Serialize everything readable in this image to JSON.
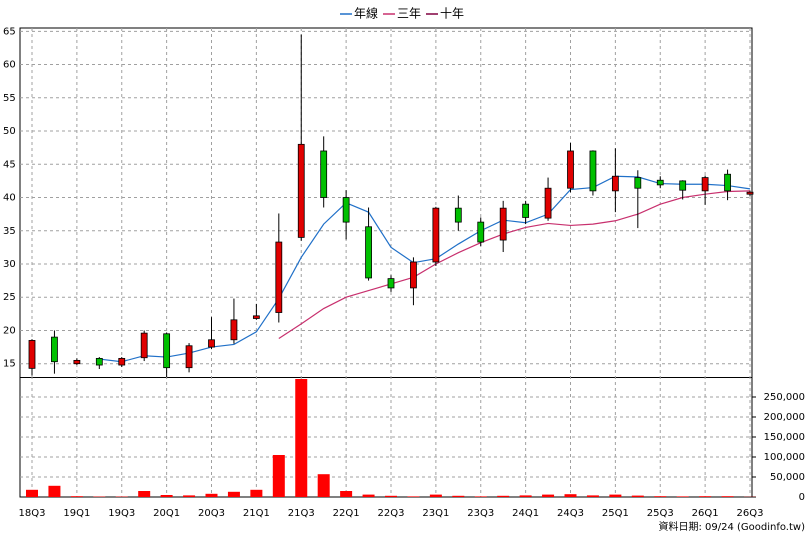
{
  "chart_data": {
    "type": "candlestick",
    "categories": [
      "18Q3",
      null,
      "19Q1",
      null,
      "19Q3",
      null,
      "20Q1",
      null,
      "20Q3",
      null,
      "21Q1",
      null,
      "21Q3",
      null,
      "22Q1",
      null,
      "22Q3",
      null,
      "23Q1",
      null,
      "23Q3",
      null,
      "24Q1",
      null,
      "24Q3",
      null,
      "25Q1",
      null,
      "25Q3",
      null,
      "26Q1",
      null,
      "26Q3"
    ],
    "open": [
      14.3,
      19,
      15,
      15.8,
      14.8,
      15.9,
      19.5,
      14.4,
      17.5,
      18.6,
      21.8,
      22.7,
      34,
      47,
      40,
      35.6,
      27.8,
      26.4,
      30.3,
      38.4,
      36.3,
      33.6,
      39,
      36.9,
      41.4,
      47,
      41,
      43,
      42.6,
      42.5,
      41,
      43.5,
      40.5
    ],
    "high": [
      18.7,
      20,
      15.8,
      16,
      16,
      20,
      19.7,
      18.1,
      22,
      24.8,
      24,
      37.6,
      64.5,
      49.2,
      41.1,
      38.5,
      28.3,
      31,
      38.6,
      40.3,
      37,
      39.5,
      39.5,
      43,
      48.2,
      47.1,
      47.4,
      44.1,
      43.2,
      42.6,
      43.3,
      44.2,
      41
    ],
    "low": [
      13.2,
      13.5,
      14.8,
      14.2,
      14.5,
      15.4,
      13,
      13.7,
      17.2,
      18,
      21.6,
      21.2,
      33.5,
      38.5,
      33.7,
      27.5,
      25.8,
      23.8,
      29.7,
      35,
      32.7,
      31.8,
      36,
      36.5,
      40.8,
      40.3,
      37.8,
      35.4,
      41.4,
      39.7,
      38.9,
      39.6,
      40.2
    ],
    "close": [
      18.5,
      15.3,
      15.5,
      14.8,
      15.8,
      19.6,
      14.4,
      17.7,
      18.6,
      21.6,
      22.2,
      33.3,
      48,
      40,
      36.3,
      27.9,
      26.4,
      30.3,
      38.4,
      36.3,
      33.3,
      38.4,
      37,
      41.4,
      47,
      41,
      43.2,
      41.4,
      41.9,
      41.1,
      43,
      41,
      40.8
    ],
    "up_color": "#e00000",
    "down_color": "#00c000",
    "ylim": [
      13,
      65.5
    ],
    "yticks": [
      15,
      20,
      25,
      30,
      35,
      40,
      45,
      50,
      55,
      60,
      65
    ],
    "grid": true,
    "legend": "top",
    "series": [
      {
        "name": "年線",
        "color": "#2070c8",
        "values": [
          null,
          null,
          null,
          15.7,
          15.3,
          16.2,
          16,
          16.6,
          17.5,
          17.9,
          19.8,
          24.8,
          31,
          36,
          39.2,
          37.8,
          32.5,
          30.2,
          30.8,
          33,
          35,
          36.6,
          36.2,
          37.5,
          41.2,
          41.5,
          43.2,
          43.1,
          42.1,
          42,
          42,
          41.8,
          41.3
        ]
      },
      {
        "name": "三年",
        "color": "#c8306e",
        "values": [
          null,
          null,
          null,
          null,
          null,
          null,
          null,
          null,
          null,
          null,
          null,
          18.8,
          21,
          23.3,
          25,
          26,
          27,
          28,
          30,
          31.7,
          33.2,
          34.5,
          35.5,
          36.1,
          35.8,
          36,
          36.5,
          37.5,
          39,
          40,
          40.5,
          40.9,
          41
        ]
      },
      {
        "name": "十年",
        "color": "#800040",
        "values": [
          null,
          null,
          null,
          null,
          null,
          null,
          null,
          null,
          null,
          null,
          null,
          null,
          null,
          null,
          null,
          null,
          null,
          null,
          null,
          null,
          null,
          null,
          null,
          null,
          null,
          null,
          null,
          null,
          null,
          null,
          null,
          null,
          null
        ]
      }
    ],
    "volume": {
      "color": "#ff0000",
      "values": [
        18000,
        28000,
        2000,
        1000,
        1000,
        15000,
        5000,
        4000,
        8000,
        13000,
        18000,
        105000,
        295000,
        57000,
        15000,
        6000,
        3000,
        1500,
        6000,
        3000,
        1500,
        3000,
        4000,
        6000,
        7000,
        4000,
        6000,
        3500,
        2000,
        1500,
        2000,
        2000,
        500
      ],
      "ylim": [
        0,
        297500
      ],
      "yticks": [
        0,
        {
          "value": 50000,
          "label": "50,000"
        },
        {
          "value": 100000,
          "label": "100,000"
        },
        {
          "value": 150000,
          "label": "150,000"
        },
        {
          "value": 200000,
          "label": "200,000"
        },
        {
          "value": 250000,
          "label": "250,000"
        }
      ]
    },
    "footnote": "資料日期: 09/24 (Goodinfo.tw)"
  }
}
